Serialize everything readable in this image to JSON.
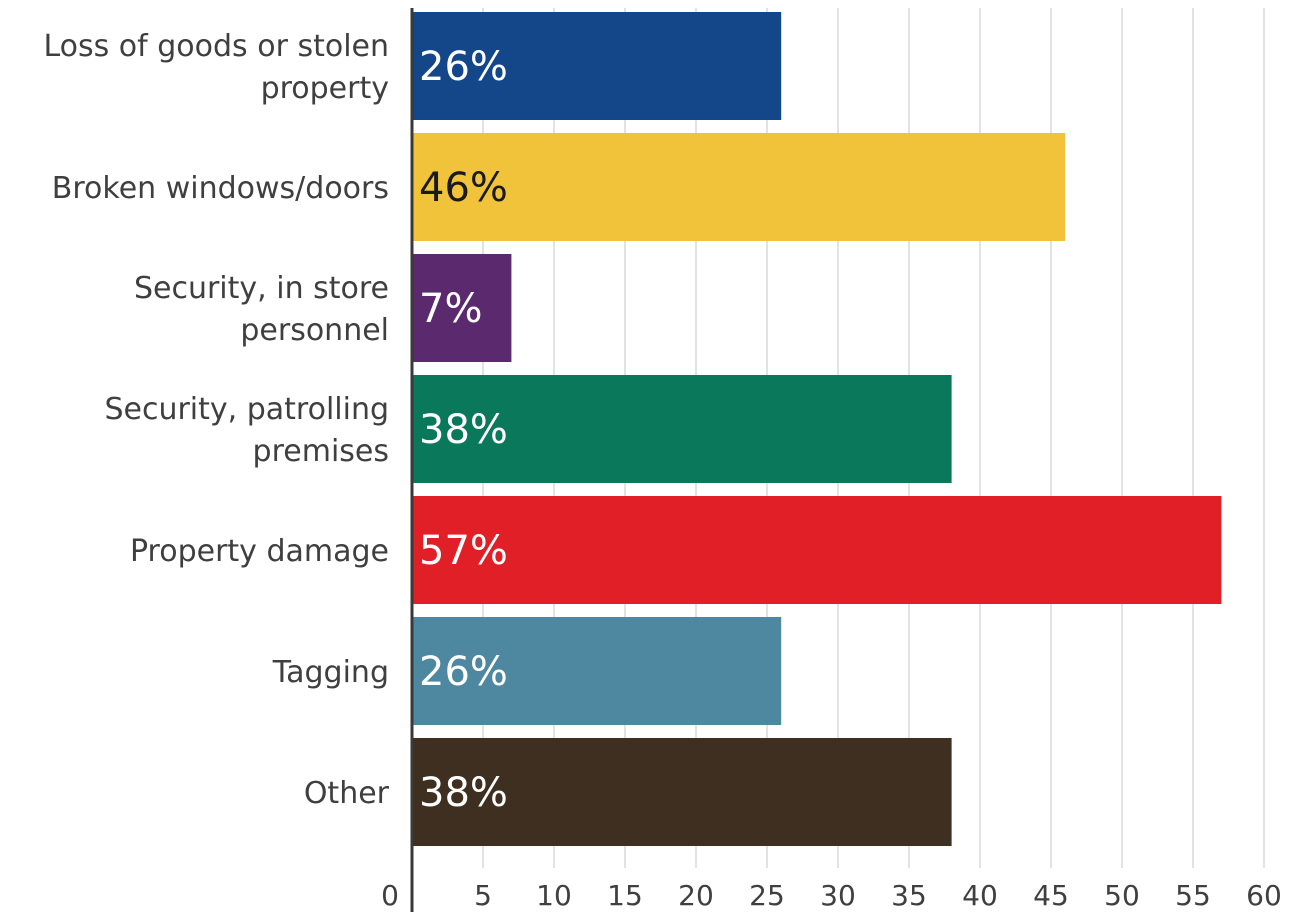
{
  "chart_data": {
    "type": "bar",
    "orientation": "horizontal",
    "categories": [
      [
        "Loss of goods or stolen",
        "property"
      ],
      [
        "Broken windows/doors"
      ],
      [
        "Security, in store",
        "personnel"
      ],
      [
        "Security, patrolling",
        "premises"
      ],
      [
        "Property damage"
      ],
      [
        "Tagging"
      ],
      [
        "Other"
      ]
    ],
    "values": [
      26,
      46,
      7,
      38,
      57,
      26,
      38
    ],
    "data_labels": [
      "26%",
      "46%",
      "7%",
      "38%",
      "57%",
      "26%",
      "38%"
    ],
    "colors": [
      "#14478a",
      "#f1c33b",
      "#5b2a6e",
      "#0a785a",
      "#e11f26",
      "#4e87a0",
      "#3e2f20"
    ],
    "label_colors": [
      "#ffffff",
      "#1a1a1a",
      "#ffffff",
      "#ffffff",
      "#ffffff",
      "#ffffff",
      "#ffffff"
    ],
    "xlim": [
      0,
      60
    ],
    "xticks": [
      0,
      5,
      10,
      15,
      20,
      25,
      30,
      35,
      40,
      45,
      50,
      55,
      60
    ],
    "title": "",
    "xlabel": "",
    "ylabel": "",
    "grid": "vertical",
    "legend": "none"
  }
}
